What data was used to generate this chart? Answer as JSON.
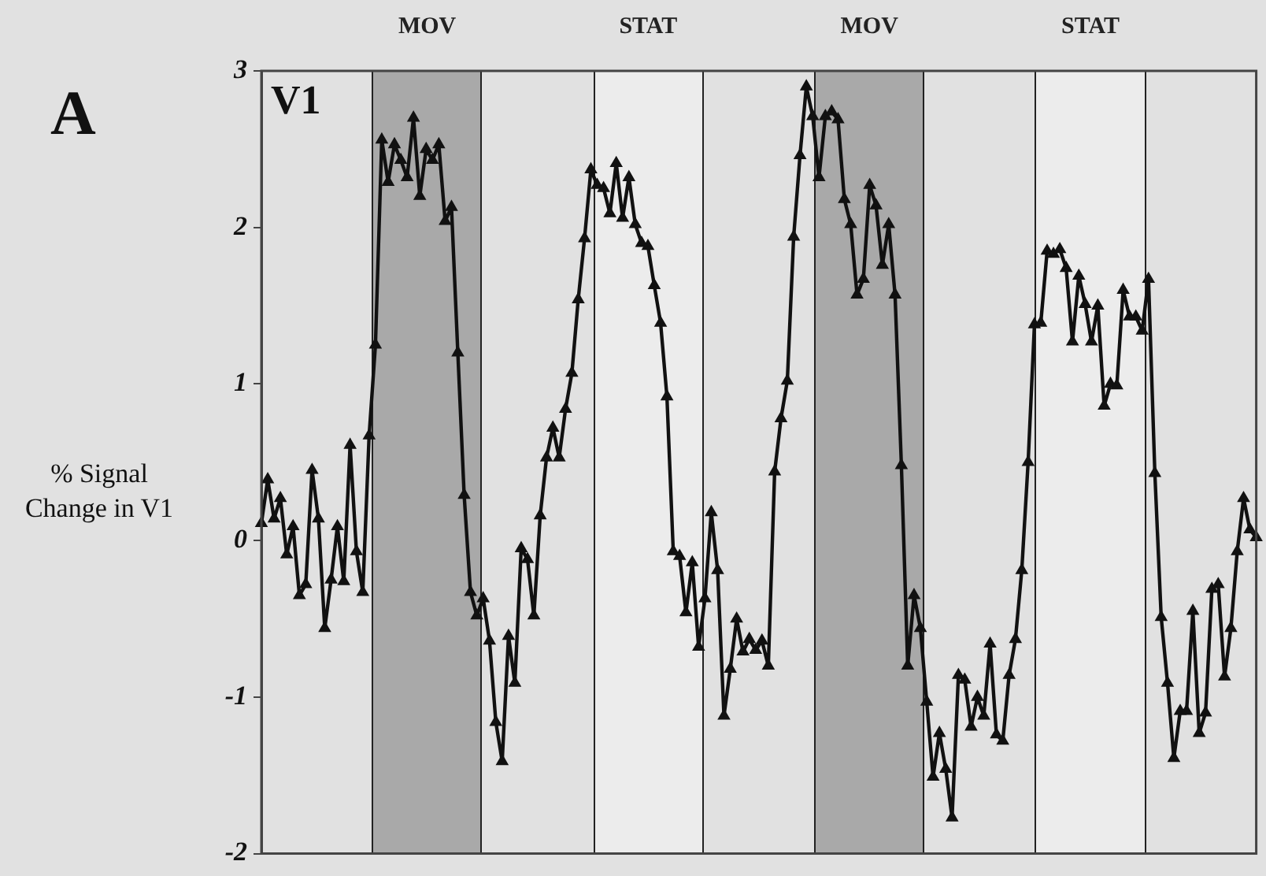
{
  "chart_data": {
    "type": "line",
    "ylabel": "% Signal Change in V1",
    "annotations": [
      "A",
      "V1",
      "MOV",
      "STAT",
      "MOV",
      "STAT"
    ],
    "categories": [
      null,
      null,
      null,
      null,
      null,
      null,
      null,
      null,
      null,
      null,
      null,
      null,
      null,
      null,
      null,
      null,
      null,
      null,
      null,
      null,
      null,
      null,
      null,
      null,
      null,
      null,
      null,
      null,
      null,
      null,
      null,
      null,
      null,
      null,
      null,
      null,
      null,
      null,
      null,
      null,
      null,
      null,
      null,
      null,
      null,
      null,
      null,
      null,
      null,
      null,
      null,
      null,
      null,
      null,
      null,
      null,
      null,
      null,
      null,
      null,
      null,
      null,
      null,
      null,
      null,
      null,
      null,
      null,
      null,
      null,
      null,
      null,
      null,
      null,
      null,
      null,
      null,
      null,
      null,
      null,
      null,
      null,
      null,
      null,
      null,
      null,
      null,
      null,
      null,
      null,
      null,
      null,
      null,
      null,
      null,
      null,
      null,
      null,
      null,
      null,
      null,
      null,
      null,
      null,
      null,
      null,
      null,
      null,
      null,
      null,
      null,
      null,
      null,
      null,
      null,
      null,
      null,
      null,
      null,
      null,
      null,
      null,
      null,
      null,
      null,
      null,
      null,
      null,
      null,
      null,
      null,
      null,
      null,
      null,
      null,
      null,
      null,
      null,
      null,
      null,
      null,
      null,
      null,
      null,
      null,
      null,
      null,
      null,
      null,
      null,
      null,
      null,
      null,
      null,
      null,
      null,
      null,
      null
    ],
    "ylim": [
      -2,
      3
    ],
    "yticks": [
      -2,
      -1,
      0,
      1,
      2,
      3
    ],
    "tick_labels": "y",
    "grid": false,
    "marker": "triangle",
    "line_style": "solid",
    "series": [
      {
        "color": "#111111",
        "values": [
          0.11,
          0.39,
          0.14,
          0.27,
          -0.09,
          0.09,
          -0.35,
          -0.28,
          0.45,
          0.14,
          -0.56,
          -0.25,
          0.09,
          -0.26,
          0.61,
          -0.07,
          -0.33,
          0.67,
          1.25,
          2.56,
          2.29,
          2.53,
          2.43,
          2.32,
          2.7,
          2.2,
          2.5,
          2.43,
          2.53,
          2.04,
          2.13,
          1.2,
          0.29,
          -0.33,
          -0.48,
          -0.37,
          -0.64,
          -1.16,
          -1.41,
          -0.61,
          -0.91,
          -0.05,
          -0.12,
          -0.48,
          0.16,
          0.53,
          0.72,
          0.53,
          0.84,
          1.07,
          1.54,
          1.93,
          2.37,
          2.27,
          2.25,
          2.09,
          2.41,
          2.06,
          2.32,
          2.02,
          1.9,
          1.88,
          1.63,
          1.39,
          0.92,
          -0.07,
          -0.1,
          -0.46,
          -0.14,
          -0.68,
          -0.37,
          0.18,
          -0.19,
          -1.12,
          -0.82,
          -0.5,
          -0.71,
          -0.63,
          -0.7,
          -0.64,
          -0.8,
          0.44,
          0.78,
          1.02,
          1.94,
          2.46,
          2.9,
          2.71,
          2.32,
          2.71,
          2.74,
          2.69,
          2.18,
          2.02,
          1.57,
          1.67,
          2.27,
          2.14,
          1.76,
          2.02,
          1.57,
          0.48,
          -0.8,
          -0.35,
          -0.56,
          -1.03,
          -1.51,
          -1.23,
          -1.46,
          -1.77,
          -0.86,
          -0.89,
          -1.19,
          -1,
          -1.12,
          -0.66,
          -1.24,
          -1.28,
          -0.86,
          -0.63,
          -0.19,
          0.5,
          1.38,
          1.39,
          1.85,
          1.83,
          1.86,
          1.74,
          1.27,
          1.69,
          1.51,
          1.27,
          1.5,
          0.86,
          1,
          0.99,
          1.6,
          1.43,
          1.43,
          1.34,
          1.67,
          0.43,
          -0.49,
          -0.91,
          -1.39,
          -1.09,
          -1.09,
          -0.45,
          -1.23,
          -1.1,
          -0.31,
          -0.28,
          -0.87,
          -0.56,
          -0.07,
          0.27,
          0.07,
          0.02
        ]
      }
    ]
  }
}
